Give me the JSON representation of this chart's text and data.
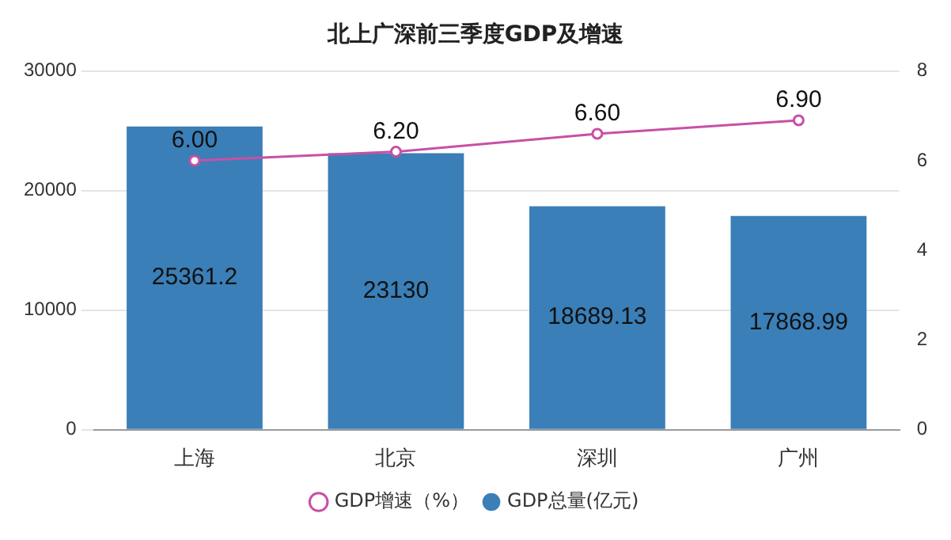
{
  "chart_data": {
    "type": "bar",
    "title": "北上广深前三季度GDP及增速",
    "categories": [
      "上海",
      "北京",
      "深圳",
      "广州"
    ],
    "series": [
      {
        "name": "GDP增速（%）",
        "type": "line",
        "axis": "y2",
        "color": "#c94fa6",
        "marker": "circle",
        "values": [
          6.0,
          6.2,
          6.6,
          6.9
        ],
        "value_labels": [
          "6.00",
          "6.20",
          "6.60",
          "6.90"
        ]
      },
      {
        "name": "GDP总量(亿元)",
        "color": "#3a7fb8",
        "values": [
          25361.2,
          23130,
          18689.13,
          17868.99
        ],
        "value_labels": [
          "25361.2",
          "23130",
          "18689.13",
          "17868.99"
        ]
      }
    ],
    "ylim": [
      0,
      30000
    ],
    "yticks": [
      0,
      10000,
      20000,
      30000
    ],
    "y2lim": [
      0,
      8
    ],
    "y2ticks": [
      0,
      2,
      4,
      6,
      8
    ],
    "grid": "y",
    "legend": "bottom"
  }
}
